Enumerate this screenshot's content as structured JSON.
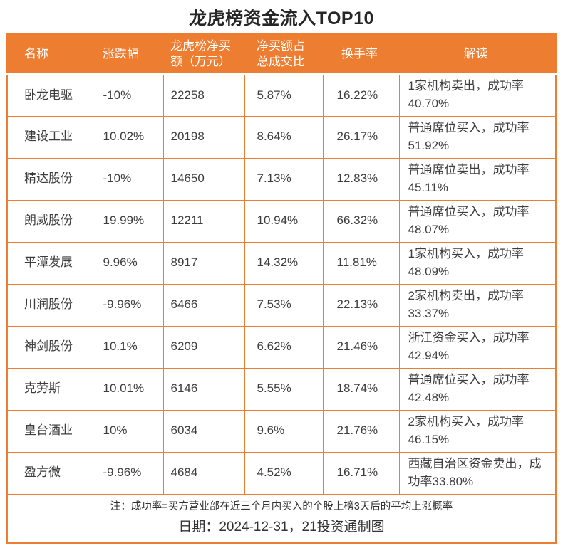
{
  "title": "龙虎榜资金流入TOP10",
  "colors": {
    "accent_orange": "#ED7D31",
    "header_text": "#FFFFFF",
    "body_text": "#3D3D3D",
    "title_text": "#262626"
  },
  "header_display": [
    "名称",
    "涨跌幅",
    "龙虎榜净买\n额（万元）",
    "净买额占\n总成交比",
    "换手率",
    "解读"
  ],
  "chart_data": {
    "type": "table",
    "title": "龙虎榜资金流入TOP10",
    "columns": [
      "名称",
      "涨跌幅",
      "龙虎榜净买额（万元）",
      "净买额占总成交比",
      "换手率",
      "解读"
    ],
    "rows": [
      [
        "卧龙电驱",
        "-10%",
        "22258",
        "5.87%",
        "16.22%",
        "1家机构卖出，成功率40.70%"
      ],
      [
        "建设工业",
        "10.02%",
        "20198",
        "8.64%",
        "26.17%",
        "普通席位买入，成功率51.92%"
      ],
      [
        "精达股份",
        "-10%",
        "14650",
        "7.13%",
        "12.83%",
        "普通席位卖出，成功率45.11%"
      ],
      [
        "朗威股份",
        "19.99%",
        "12211",
        "10.94%",
        "66.32%",
        "普通席位买入，成功率48.07%"
      ],
      [
        "平潭发展",
        "9.96%",
        "8917",
        "14.32%",
        "11.81%",
        "1家机构买入，成功率48.09%"
      ],
      [
        "川润股份",
        "-9.96%",
        "6466",
        "7.53%",
        "22.13%",
        "2家机构卖出，成功率33.37%"
      ],
      [
        "神剑股份",
        "10.1%",
        "6209",
        "6.62%",
        "21.46%",
        "浙江资金买入，成功率42.94%"
      ],
      [
        "克劳斯",
        "10.01%",
        "6146",
        "5.55%",
        "18.74%",
        "普通席位买入，成功率42.48%"
      ],
      [
        "皇台酒业",
        "10%",
        "6034",
        "9.6%",
        "21.76%",
        "2家机构买入，成功率46.15%"
      ],
      [
        "盈方微",
        "-9.96%",
        "4684",
        "4.52%",
        "16.71%",
        "西藏自治区资金卖出，成功率33.80%"
      ]
    ],
    "note": "注：成功率=买方营业部在近三个月内买入的个股上榜3天后的平均上涨概率",
    "date_line": "日期：2024-12-31，21投资通制图"
  },
  "footer": {
    "note": "注：成功率=买方营业部在近三个月内买入的个股上榜3天后的平均上涨概率",
    "date": "日期：2024-12-31，21投资通制图"
  }
}
